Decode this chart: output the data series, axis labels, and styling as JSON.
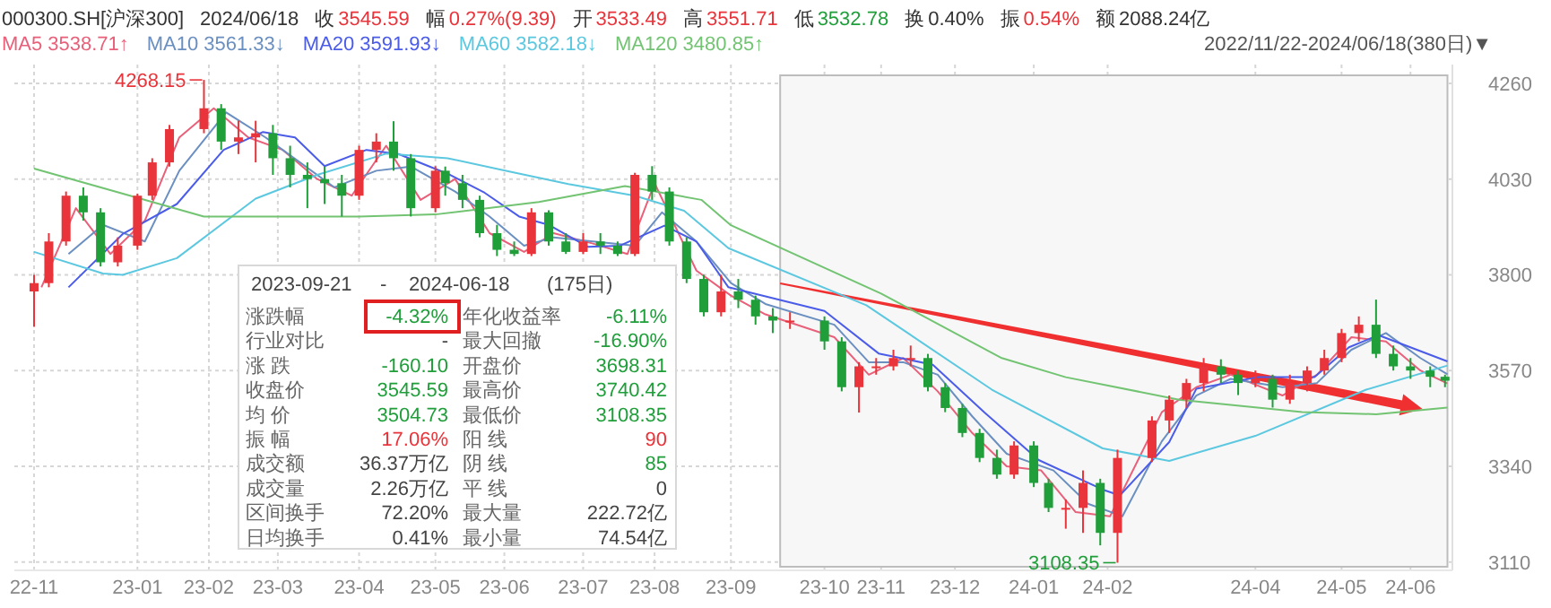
{
  "chart_data": {
    "type": "candlestick",
    "xlim": [
      "2022-11-14",
      "2024-06-20"
    ],
    "ylim": [
      3090,
      4305
    ],
    "yticks": [
      4260,
      4030,
      3800,
      3570,
      3340,
      3110
    ],
    "xticks": [
      {
        "value": "2022-11-22",
        "label": "22-11"
      },
      {
        "value": "2023-01-03",
        "label": "23-01"
      },
      {
        "value": "2023-02-01",
        "label": "23-02"
      },
      {
        "value": "2023-03-01",
        "label": "23-03"
      },
      {
        "value": "2023-04-03",
        "label": "23-04"
      },
      {
        "value": "2023-05-04",
        "label": "23-05"
      },
      {
        "value": "2023-06-01",
        "label": "23-06"
      },
      {
        "value": "2023-07-03",
        "label": "23-07"
      },
      {
        "value": "2023-08-01",
        "label": "23-08"
      },
      {
        "value": "2023-09-01",
        "label": "23-09"
      },
      {
        "value": "2023-10-09",
        "label": "23-10"
      },
      {
        "value": "2023-11-01",
        "label": "23-11"
      },
      {
        "value": "2023-12-01",
        "label": "23-12"
      },
      {
        "value": "2024-01-02",
        "label": "24-01"
      },
      {
        "value": "2024-02-01",
        "label": "24-02"
      },
      {
        "value": "2024-04-01",
        "label": "24-04"
      },
      {
        "value": "2024-05-06",
        "label": "24-05"
      },
      {
        "value": "2024-06-03",
        "label": "24-06"
      }
    ],
    "grid": true,
    "legend": "top left",
    "x": [
      "2022-11-22",
      "2022-11-28",
      "2022-12-05",
      "2022-12-12",
      "2022-12-19",
      "2022-12-26",
      "2023-01-03",
      "2023-01-09",
      "2023-01-16",
      "2023-01-30",
      "2023-02-06",
      "2023-02-13",
      "2023-02-20",
      "2023-02-27",
      "2023-03-06",
      "2023-03-13",
      "2023-03-20",
      "2023-03-27",
      "2023-04-03",
      "2023-04-10",
      "2023-04-17",
      "2023-04-24",
      "2023-05-04",
      "2023-05-08",
      "2023-05-15",
      "2023-05-22",
      "2023-05-29",
      "2023-06-05",
      "2023-06-12",
      "2023-06-19",
      "2023-06-26",
      "2023-07-03",
      "2023-07-10",
      "2023-07-17",
      "2023-07-24",
      "2023-07-31",
      "2023-08-07",
      "2023-08-14",
      "2023-08-21",
      "2023-08-28",
      "2023-09-04",
      "2023-09-11",
      "2023-09-18",
      "2023-09-25",
      "2023-10-09",
      "2023-10-16",
      "2023-10-23",
      "2023-10-30",
      "2023-11-06",
      "2023-11-13",
      "2023-11-20",
      "2023-11-27",
      "2023-12-04",
      "2023-12-11",
      "2023-12-18",
      "2023-12-25",
      "2024-01-02",
      "2024-01-08",
      "2024-01-15",
      "2024-01-22",
      "2024-01-29",
      "2024-02-05",
      "2024-02-19",
      "2024-02-26",
      "2024-03-04",
      "2024-03-11",
      "2024-03-18",
      "2024-03-25",
      "2024-04-01",
      "2024-04-08",
      "2024-04-15",
      "2024-04-22",
      "2024-04-29",
      "2024-05-06",
      "2024-05-13",
      "2024-05-20",
      "2024-05-27",
      "2024-06-03",
      "2024-06-11",
      "2024-06-17"
    ],
    "ohlc": [
      [
        3760,
        3800,
        3675,
        3780
      ],
      [
        3780,
        3900,
        3770,
        3880
      ],
      [
        3880,
        4000,
        3870,
        3990
      ],
      [
        3990,
        4010,
        3930,
        3950
      ],
      [
        3950,
        3960,
        3820,
        3830
      ],
      [
        3830,
        3890,
        3820,
        3870
      ],
      [
        3870,
        3995,
        3860,
        3990
      ],
      [
        3990,
        4080,
        3980,
        4070
      ],
      [
        4070,
        4160,
        4060,
        4150
      ],
      [
        4150,
        4268.15,
        4140,
        4200
      ],
      [
        4200,
        4210,
        4100,
        4120
      ],
      [
        4120,
        4170,
        4090,
        4130
      ],
      [
        4130,
        4170,
        4070,
        4140
      ],
      [
        4140,
        4160,
        4040,
        4080
      ],
      [
        4080,
        4110,
        4010,
        4040
      ],
      [
        4040,
        4070,
        3960,
        4030
      ],
      [
        4030,
        4060,
        3970,
        4020
      ],
      [
        4020,
        4040,
        3940,
        3990
      ],
      [
        3990,
        4110,
        3980,
        4100
      ],
      [
        4100,
        4140,
        4070,
        4120
      ],
      [
        4120,
        4169,
        4050,
        4080
      ],
      [
        4080,
        4090,
        3940,
        3960
      ],
      [
        3960,
        4061,
        3950,
        4050
      ],
      [
        4050,
        4060,
        3990,
        4020
      ],
      [
        4020,
        4040,
        3960,
        3980
      ],
      [
        3980,
        3990,
        3890,
        3900
      ],
      [
        3900,
        3920,
        3845,
        3860
      ],
      [
        3860,
        3880,
        3845,
        3850
      ],
      [
        3850,
        3960,
        3845,
        3950
      ],
      [
        3950,
        3955,
        3870,
        3880
      ],
      [
        3880,
        3900,
        3850,
        3855
      ],
      [
        3855,
        3900,
        3850,
        3880
      ],
      [
        3880,
        3900,
        3850,
        3870
      ],
      [
        3870,
        3880,
        3845,
        3850
      ],
      [
        3850,
        4045,
        3845,
        4040
      ],
      [
        4040,
        4061,
        3980,
        4000
      ],
      [
        4000,
        4010,
        3870,
        3880
      ],
      [
        3880,
        3890,
        3780,
        3790
      ],
      [
        3790,
        3800,
        3700,
        3710
      ],
      [
        3710,
        3800,
        3700,
        3760
      ],
      [
        3760,
        3790,
        3720,
        3740
      ],
      [
        3740,
        3750,
        3680,
        3700
      ],
      [
        3700,
        3720,
        3660,
        3690
      ],
      [
        3690,
        3710,
        3670,
        3690
      ],
      [
        3690,
        3700,
        3620,
        3640
      ],
      [
        3640,
        3650,
        3520,
        3530
      ],
      [
        3530,
        3590,
        3469,
        3580
      ],
      [
        3580,
        3600,
        3560,
        3580
      ],
      [
        3580,
        3620,
        3570,
        3600
      ],
      [
        3600,
        3630,
        3580,
        3600
      ],
      [
        3600,
        3610,
        3520,
        3530
      ],
      [
        3530,
        3540,
        3470,
        3480
      ],
      [
        3480,
        3490,
        3410,
        3420
      ],
      [
        3420,
        3430,
        3350,
        3360
      ],
      [
        3360,
        3380,
        3310,
        3320
      ],
      [
        3320,
        3400,
        3310,
        3390
      ],
      [
        3390,
        3400,
        3290,
        3300
      ],
      [
        3300,
        3310,
        3230,
        3240
      ],
      [
        3240,
        3260,
        3190,
        3240
      ],
      [
        3240,
        3330,
        3180,
        3300
      ],
      [
        3300,
        3310,
        3150,
        3180
      ],
      [
        3180,
        3380,
        3108.35,
        3360
      ],
      [
        3360,
        3460,
        3350,
        3450
      ],
      [
        3450,
        3510,
        3420,
        3500
      ],
      [
        3500,
        3550,
        3480,
        3540
      ],
      [
        3540,
        3600,
        3520,
        3580
      ],
      [
        3580,
        3597,
        3540,
        3560
      ],
      [
        3560,
        3570,
        3511,
        3540
      ],
      [
        3540,
        3570,
        3530,
        3550
      ],
      [
        3550,
        3560,
        3481,
        3500
      ],
      [
        3500,
        3560,
        3490,
        3540
      ],
      [
        3540,
        3580,
        3520,
        3570
      ],
      [
        3570,
        3620,
        3560,
        3600
      ],
      [
        3600,
        3670,
        3590,
        3660
      ],
      [
        3660,
        3700,
        3640,
        3680
      ],
      [
        3680,
        3740.42,
        3600,
        3610
      ],
      [
        3610,
        3630,
        3570,
        3580
      ],
      [
        3580,
        3600,
        3550,
        3570
      ],
      [
        3570,
        3580,
        3530,
        3555
      ],
      [
        3555,
        3560,
        3530,
        3545.59
      ]
    ],
    "series": [
      {
        "name": "MA5",
        "type": "line",
        "color": "#e8607a",
        "x": [
          "2022-11-25",
          "2022-12-09",
          "2022-12-23",
          "2023-01-06",
          "2023-01-20",
          "2023-02-03",
          "2023-02-17",
          "2023-03-03",
          "2023-03-17",
          "2023-03-31",
          "2023-04-14",
          "2023-04-28",
          "2023-05-12",
          "2023-05-26",
          "2023-06-09",
          "2023-06-21",
          "2023-07-07",
          "2023-07-21",
          "2023-08-01",
          "2023-08-18",
          "2023-09-01",
          "2023-09-15",
          "2023-10-13",
          "2023-10-27",
          "2023-11-10",
          "2023-11-24",
          "2023-12-08",
          "2023-12-22",
          "2024-01-05",
          "2024-01-19",
          "2024-02-02",
          "2024-02-23",
          "2024-03-08",
          "2024-03-22",
          "2024-04-12",
          "2024-04-26",
          "2024-05-10",
          "2024-05-24",
          "2024-06-07",
          "2024-06-18"
        ],
        "values": [
          3770,
          3960,
          3850,
          3930,
          4130,
          4200,
          4130,
          4100,
          4030,
          3990,
          4110,
          3980,
          4030,
          3900,
          3855,
          3900,
          3875,
          3850,
          4020,
          3810,
          3750,
          3705,
          3650,
          3560,
          3600,
          3520,
          3420,
          3340,
          3330,
          3230,
          3220,
          3470,
          3530,
          3560,
          3510,
          3560,
          3650,
          3640,
          3570,
          3539
        ]
      },
      {
        "name": "MA10",
        "type": "line",
        "color": "#6a8fc0",
        "x": [
          "2022-12-06",
          "2022-12-20",
          "2023-01-06",
          "2023-01-20",
          "2023-02-08",
          "2023-02-24",
          "2023-03-10",
          "2023-03-24",
          "2023-04-10",
          "2023-04-24",
          "2023-05-12",
          "2023-05-26",
          "2023-06-09",
          "2023-06-21",
          "2023-07-07",
          "2023-07-24",
          "2023-08-04",
          "2023-08-18",
          "2023-09-01",
          "2023-09-15",
          "2023-10-13",
          "2023-10-27",
          "2023-11-10",
          "2023-11-24",
          "2023-12-08",
          "2023-12-22",
          "2024-01-10",
          "2024-01-24",
          "2024-02-07",
          "2024-02-23",
          "2024-03-08",
          "2024-03-22",
          "2024-04-12",
          "2024-04-26",
          "2024-05-10",
          "2024-05-24",
          "2024-06-07",
          "2024-06-18"
        ],
        "values": [
          3850,
          3920,
          3880,
          4050,
          4190,
          4130,
          4070,
          4010,
          4050,
          4060,
          4000,
          3940,
          3870,
          3890,
          3880,
          3870,
          3950,
          3880,
          3780,
          3730,
          3680,
          3590,
          3590,
          3560,
          3460,
          3370,
          3330,
          3250,
          3220,
          3400,
          3510,
          3550,
          3530,
          3540,
          3620,
          3660,
          3600,
          3561
        ]
      },
      {
        "name": "MA20",
        "type": "line",
        "color": "#4a5ce8",
        "x": [
          "2022-12-06",
          "2022-12-28",
          "2023-01-19",
          "2023-02-07",
          "2023-02-23",
          "2023-03-08",
          "2023-03-20",
          "2023-04-06",
          "2023-04-19",
          "2023-05-10",
          "2023-05-24",
          "2023-06-07",
          "2023-06-19",
          "2023-07-05",
          "2023-07-18",
          "2023-08-05",
          "2023-08-18",
          "2023-08-31",
          "2023-10-09",
          "2023-10-31",
          "2023-11-22",
          "2023-12-13",
          "2024-01-04",
          "2024-01-30",
          "2024-02-06",
          "2024-02-26",
          "2024-03-08",
          "2024-04-02",
          "2024-04-25",
          "2024-05-09",
          "2024-05-21",
          "2024-06-18"
        ],
        "values": [
          3770,
          3898,
          3970,
          4100,
          4143,
          4130,
          4061,
          4100,
          4090,
          4040,
          3997,
          3940,
          3920,
          3867,
          3870,
          3918,
          3880,
          3770,
          3713,
          3611,
          3584,
          3469,
          3355,
          3284,
          3270,
          3398,
          3526,
          3554,
          3554,
          3626,
          3655,
          3592
        ]
      },
      {
        "name": "MA60",
        "type": "line",
        "color": "#5cc8e0",
        "x": [
          "2022-11-22",
          "2022-12-20",
          "2022-12-28",
          "2023-01-19",
          "2023-02-20",
          "2023-03-17",
          "2023-04-14",
          "2023-05-09",
          "2023-06-03",
          "2023-06-27",
          "2023-07-24",
          "2023-08-13",
          "2023-08-31",
          "2023-10-26",
          "2023-12-16",
          "2024-01-30",
          "2024-02-26",
          "2024-04-01",
          "2024-05-16",
          "2024-06-18"
        ],
        "values": [
          3855,
          3803,
          3800,
          3840,
          3983,
          4040,
          4091,
          4080,
          4048,
          4018,
          3990,
          3954,
          3864,
          3727,
          3524,
          3383,
          3353,
          3413,
          3524,
          3582
        ]
      },
      {
        "name": "MA120",
        "type": "line",
        "color": "#72c472",
        "x": [
          "2022-11-22",
          "2023-01-30",
          "2023-04-03",
          "2023-05-04",
          "2023-06-15",
          "2023-07-20",
          "2023-08-20",
          "2023-09-01",
          "2023-11-01",
          "2023-12-20",
          "2024-01-15",
          "2024-03-01",
          "2024-04-20",
          "2024-05-20",
          "2024-06-18"
        ],
        "values": [
          4055,
          3940,
          3940,
          3945,
          3975,
          4013,
          3980,
          3919,
          3755,
          3600,
          3554,
          3500,
          3470,
          3465,
          3481
        ]
      }
    ],
    "bands": [
      {
        "axis": "x",
        "from": "2023-09-21",
        "to": "2024-06-18",
        "color": "#f7f7f7"
      }
    ],
    "annotations": [
      "000300.SH[沪深300]",
      "2024/06/18",
      "收",
      "3545.59",
      "幅",
      "0.27%(9.39)",
      "开",
      "3533.49",
      "高",
      "3551.71",
      "低",
      "3532.78",
      "换",
      "0.40%",
      "振",
      "0.54%",
      "额",
      "2088.24亿",
      "3538.71↑",
      "3561.33↓",
      "3591.93↓",
      "3582.18↓",
      "3480.85↑",
      "2022/11/22-2024/06/18(380日)▼",
      {
        "text": "4268.15",
        "x": "2023-01-30",
        "y": 4268.15
      },
      {
        "text": "3108.35",
        "x": "2024-02-05",
        "y": 3108.35
      },
      "2023-09-21",
      "-",
      "2024-06-18",
      "(175日)",
      "涨跌幅",
      "-4.32%",
      "年化收益率",
      "-6.11%",
      "行业对比",
      "-",
      "最大回撤",
      "-16.90%",
      "涨 跌",
      "-160.10",
      "开盘价",
      "3698.31",
      "收盘价",
      "3545.59",
      "最高价",
      "3740.42",
      "均 价",
      "3504.73",
      "最低价",
      "3108.35",
      "振 幅",
      "17.06%",
      "阳 线",
      "90",
      "成交额",
      "36.37万亿",
      "阴 线",
      "85",
      "成交量",
      "2.26万亿",
      "平 线",
      "0",
      "区间换手",
      "72.20%",
      "最大量",
      "222.72亿",
      "日均换手",
      "0.41%",
      "最小量",
      "74.54亿"
    ]
  }
}
